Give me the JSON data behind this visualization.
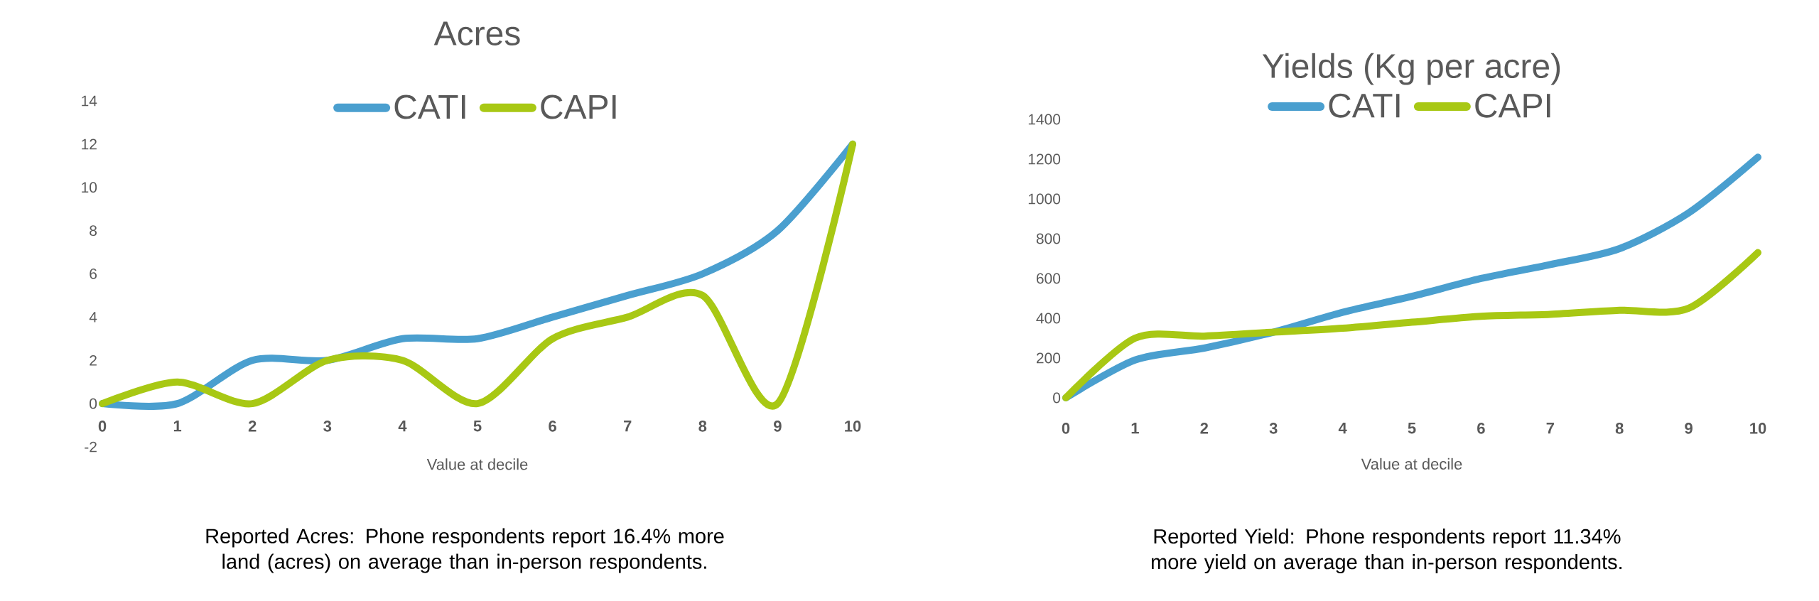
{
  "chart_data": [
    {
      "type": "line",
      "title": "Acres",
      "xlabel": "Value at decile",
      "categories": [
        "0",
        "1",
        "2",
        "3",
        "4",
        "5",
        "6",
        "7",
        "8",
        "9",
        "10"
      ],
      "series": [
        {
          "name": "CATI",
          "color": "#4a9fcf",
          "values": [
            0,
            0,
            2,
            2,
            3,
            3,
            4,
            5,
            6,
            8,
            12
          ]
        },
        {
          "name": "CAPI",
          "color": "#a8c814",
          "values": [
            0,
            1,
            0,
            2,
            2,
            0,
            3,
            4,
            5,
            0,
            12
          ]
        }
      ],
      "ylim": [
        -2,
        14
      ],
      "yticks": [
        -2,
        0,
        2,
        4,
        6,
        8,
        10,
        12,
        14
      ],
      "legend": "top",
      "annotations": [
        "Reported Acres: Phone respondents report 16.4% more land (acres) on average than in-person respondents."
      ]
    },
    {
      "type": "line",
      "title": "Yields (Kg per acre)",
      "xlabel": "Value at decile",
      "categories": [
        "0",
        "1",
        "2",
        "3",
        "4",
        "5",
        "6",
        "7",
        "8",
        "9",
        "10"
      ],
      "series": [
        {
          "name": "CATI",
          "color": "#4a9fcf",
          "values": [
            0,
            190,
            250,
            330,
            430,
            510,
            600,
            670,
            750,
            930,
            1210
          ]
        },
        {
          "name": "CAPI",
          "color": "#a8c814",
          "values": [
            0,
            300,
            310,
            330,
            350,
            380,
            410,
            420,
            440,
            450,
            730
          ]
        }
      ],
      "ylim": [
        0,
        1400
      ],
      "yticks": [
        0,
        200,
        400,
        600,
        800,
        1000,
        1200,
        1400
      ],
      "legend": "top",
      "annotations": [
        "Reported Yield: Phone respondents report 11.34% more yield on average than in-person respondents."
      ]
    }
  ]
}
